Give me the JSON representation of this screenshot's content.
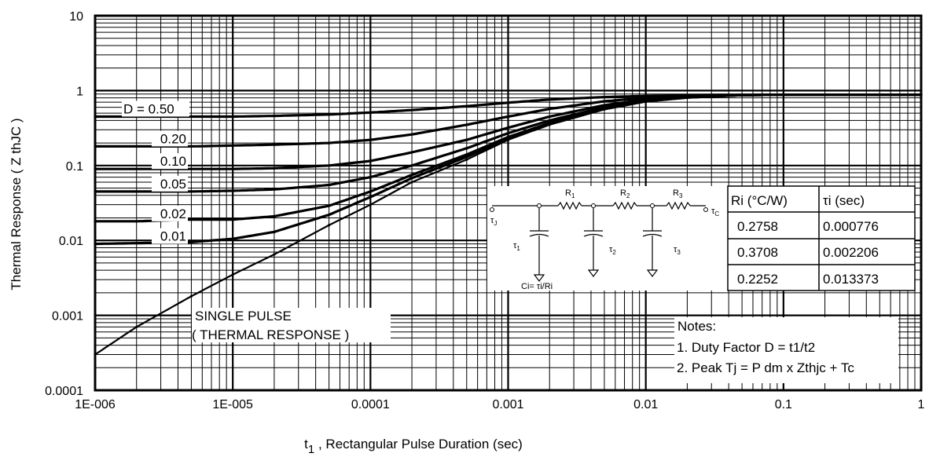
{
  "chart_data": {
    "type": "line",
    "x_scale": "log",
    "y_scale": "log",
    "xlim": [
      1e-06,
      1
    ],
    "ylim": [
      0.0001,
      10
    ],
    "grid": true,
    "xlabel": "t",
    "xlabel_sub": "1",
    "xlabel_rest": " , Rectangular Pulse Duration (sec)",
    "ylabel": "Thermal Response ( Z  thJC )",
    "x_tick_labels": [
      "1E-006",
      "1E-005",
      "0.0001",
      "0.001",
      "0.01",
      "0.1",
      "1"
    ],
    "y_tick_labels": [
      "0.0001",
      "0.001",
      "0.01",
      "0.1",
      "1",
      "10"
    ],
    "x": [
      1e-06,
      2e-06,
      5e-06,
      1e-05,
      2e-05,
      5e-05,
      0.0001,
      0.0002,
      0.0005,
      0.001,
      0.002,
      0.005,
      0.01,
      0.02,
      0.05,
      0.1,
      1
    ],
    "series": [
      {
        "name": "D = 0.50",
        "label": "D = 0.50",
        "values": [
          0.45,
          0.45,
          0.45,
          0.45,
          0.46,
          0.48,
          0.51,
          0.55,
          0.62,
          0.69,
          0.76,
          0.82,
          0.85,
          0.87,
          0.88,
          0.88,
          0.88
        ]
      },
      {
        "name": "0.20",
        "label": "0.20",
        "values": [
          0.18,
          0.18,
          0.18,
          0.185,
          0.19,
          0.2,
          0.22,
          0.26,
          0.35,
          0.45,
          0.57,
          0.72,
          0.8,
          0.85,
          0.87,
          0.88,
          0.88
        ]
      },
      {
        "name": "0.10",
        "label": "0.10",
        "values": [
          0.09,
          0.09,
          0.09,
          0.09,
          0.092,
          0.1,
          0.115,
          0.15,
          0.22,
          0.32,
          0.45,
          0.64,
          0.76,
          0.83,
          0.87,
          0.88,
          0.88
        ]
      },
      {
        "name": "0.05",
        "label": "0.05",
        "values": [
          0.045,
          0.045,
          0.045,
          0.046,
          0.048,
          0.055,
          0.07,
          0.1,
          0.17,
          0.27,
          0.4,
          0.6,
          0.74,
          0.82,
          0.87,
          0.88,
          0.88
        ]
      },
      {
        "name": "0.02",
        "label": "0.02",
        "values": [
          0.018,
          0.018,
          0.019,
          0.019,
          0.021,
          0.029,
          0.045,
          0.075,
          0.14,
          0.24,
          0.37,
          0.58,
          0.73,
          0.82,
          0.87,
          0.88,
          0.88
        ]
      },
      {
        "name": "0.01",
        "label": "0.01",
        "values": [
          0.009,
          0.0092,
          0.0095,
          0.0105,
          0.013,
          0.022,
          0.038,
          0.068,
          0.13,
          0.23,
          0.36,
          0.57,
          0.72,
          0.81,
          0.87,
          0.88,
          0.88
        ]
      },
      {
        "name": "SINGLE PULSE",
        "values": [
          0.0003,
          0.0007,
          0.0018,
          0.0035,
          0.0065,
          0.016,
          0.03,
          0.06,
          0.12,
          0.22,
          0.35,
          0.56,
          0.71,
          0.8,
          0.86,
          0.88,
          0.88
        ]
      }
    ],
    "annotations": {
      "single_pulse_line1": "SINGLE PULSE",
      "single_pulse_line2": "( THERMAL RESPONSE )",
      "notes_title": "Notes:",
      "note1": "1. Duty Factor D = t1/t2",
      "note2": "2. Peak Tj = P dm x Zthjc + Tc"
    },
    "rc_table": {
      "headers": [
        "Ri (°C/W)",
        "τi (sec)"
      ],
      "rows": [
        [
          "0.2758",
          "0.000776"
        ],
        [
          "0.3708",
          "0.002206"
        ],
        [
          "0.2252",
          "0.013373"
        ]
      ]
    },
    "circuit": {
      "r_labels": [
        "R",
        "R",
        "R"
      ],
      "r_subs": [
        "1",
        "2",
        "3"
      ],
      "tau_labels": [
        "τ",
        "τ",
        "τ"
      ],
      "tau_subs": [
        "1",
        "2",
        "3"
      ],
      "tau_j": "τ",
      "tau_j_sub": "J",
      "tau_c": "τ",
      "tau_c_sub": "C",
      "ci_formula": "Ci= τi/Ri"
    }
  }
}
